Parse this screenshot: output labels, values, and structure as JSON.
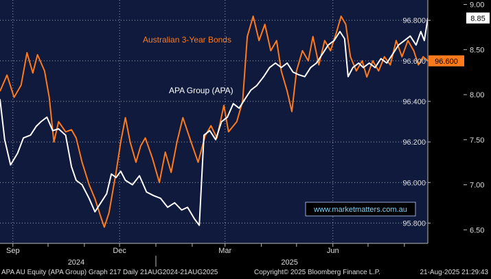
{
  "chart_data": {
    "type": "line",
    "x_range": [
      "2024-08-21",
      "2025-08-21"
    ],
    "x_tick_labels": [
      {
        "label": "Sep",
        "date": "2024-09-01"
      },
      {
        "label": "Dec",
        "date": "2024-12-01"
      },
      {
        "label": "Mar",
        "date": "2025-03-01"
      },
      {
        "label": "Jun",
        "date": "2025-06-01"
      }
    ],
    "year_labels": [
      {
        "label": "2024",
        "date": "2024-10-25"
      },
      {
        "label": "2025",
        "date": "2025-04-25"
      }
    ],
    "left_axis": {
      "series": "Australian 3-Year Bonds",
      "ylim": [
        95.7,
        96.9
      ],
      "ticks": [
        95.8,
        96.0,
        96.2,
        96.4,
        96.6,
        96.8
      ],
      "tick_labels": [
        "95.800",
        "96.000",
        "96.200",
        "96.400",
        "96.600",
        "96.800"
      ]
    },
    "right_axis": {
      "series": "APA Group (APA)",
      "ylim": [
        6.35,
        9.05
      ],
      "ticks": [
        6.5,
        7.0,
        7.5,
        8.0,
        8.5,
        9.0
      ],
      "tick_labels": [
        "6.50",
        "7.00",
        "7.50",
        "8.00",
        "8.50",
        "9.00"
      ]
    },
    "grid": true,
    "series": [
      {
        "name": "Australian 3-Year Bonds",
        "axis": "left",
        "color": "#ff7a1a",
        "last_value": "96.600",
        "points": [
          [
            "2024-08-21",
            96.45
          ],
          [
            "2024-08-27",
            96.53
          ],
          [
            "2024-09-02",
            96.42
          ],
          [
            "2024-09-08",
            96.48
          ],
          [
            "2024-09-13",
            96.64
          ],
          [
            "2024-09-18",
            96.54
          ],
          [
            "2024-09-22",
            96.63
          ],
          [
            "2024-09-28",
            96.55
          ],
          [
            "2024-10-02",
            96.42
          ],
          [
            "2024-10-06",
            96.2
          ],
          [
            "2024-10-10",
            96.3
          ],
          [
            "2024-10-16",
            96.25
          ],
          [
            "2024-10-21",
            96.26
          ],
          [
            "2024-10-25",
            96.22
          ],
          [
            "2024-10-30",
            96.1
          ],
          [
            "2024-11-05",
            95.99
          ],
          [
            "2024-11-10",
            95.92
          ],
          [
            "2024-11-15",
            95.83
          ],
          [
            "2024-11-18",
            95.78
          ],
          [
            "2024-11-22",
            95.85
          ],
          [
            "2024-11-28",
            96.05
          ],
          [
            "2024-12-02",
            96.2
          ],
          [
            "2024-12-06",
            96.32
          ],
          [
            "2024-12-10",
            96.2
          ],
          [
            "2024-12-15",
            96.1
          ],
          [
            "2024-12-19",
            96.18
          ],
          [
            "2024-12-23",
            96.22
          ],
          [
            "2024-12-29",
            96.12
          ],
          [
            "2025-01-04",
            96.0
          ],
          [
            "2025-01-09",
            96.15
          ],
          [
            "2025-01-14",
            96.05
          ],
          [
            "2025-01-19",
            96.2
          ],
          [
            "2025-01-24",
            96.32
          ],
          [
            "2025-01-31",
            96.2
          ],
          [
            "2025-02-06",
            96.1
          ],
          [
            "2025-02-12",
            96.23
          ],
          [
            "2025-02-17",
            96.28
          ],
          [
            "2025-02-22",
            96.22
          ],
          [
            "2025-02-28",
            96.38
          ],
          [
            "2025-03-04",
            96.25
          ],
          [
            "2025-03-11",
            96.3
          ],
          [
            "2025-03-16",
            96.4
          ],
          [
            "2025-03-20",
            96.72
          ],
          [
            "2025-03-25",
            96.82
          ],
          [
            "2025-03-30",
            96.7
          ],
          [
            "2025-04-04",
            96.78
          ],
          [
            "2025-04-09",
            96.65
          ],
          [
            "2025-04-14",
            96.7
          ],
          [
            "2025-04-18",
            96.55
          ],
          [
            "2025-04-23",
            96.45
          ],
          [
            "2025-04-27",
            96.35
          ],
          [
            "2025-05-01",
            96.55
          ],
          [
            "2025-05-06",
            96.65
          ],
          [
            "2025-05-11",
            96.6
          ],
          [
            "2025-05-15",
            96.72
          ],
          [
            "2025-05-20",
            96.58
          ],
          [
            "2025-05-25",
            96.7
          ],
          [
            "2025-05-30",
            96.65
          ],
          [
            "2025-06-04",
            96.74
          ],
          [
            "2025-06-08",
            96.82
          ],
          [
            "2025-06-12",
            96.78
          ],
          [
            "2025-06-16",
            96.62
          ],
          [
            "2025-06-21",
            96.55
          ],
          [
            "2025-06-26",
            96.6
          ],
          [
            "2025-06-30",
            96.52
          ],
          [
            "2025-07-05",
            96.6
          ],
          [
            "2025-07-10",
            96.55
          ],
          [
            "2025-07-15",
            96.62
          ],
          [
            "2025-07-20",
            96.58
          ],
          [
            "2025-07-25",
            96.7
          ],
          [
            "2025-07-30",
            96.62
          ],
          [
            "2025-08-04",
            96.7
          ],
          [
            "2025-08-09",
            96.65
          ],
          [
            "2025-08-13",
            96.58
          ],
          [
            "2025-08-17",
            96.62
          ],
          [
            "2025-08-21",
            96.6
          ]
        ]
      },
      {
        "name": "APA Group (APA)",
        "axis": "right",
        "color": "#ffffff",
        "last_value": "8.85",
        "points": [
          [
            "2024-08-21",
            7.95
          ],
          [
            "2024-08-25",
            7.5
          ],
          [
            "2024-08-30",
            7.22
          ],
          [
            "2024-09-05",
            7.35
          ],
          [
            "2024-09-10",
            7.52
          ],
          [
            "2024-09-16",
            7.55
          ],
          [
            "2024-09-21",
            7.65
          ],
          [
            "2024-09-25",
            7.7
          ],
          [
            "2024-09-30",
            7.75
          ],
          [
            "2024-10-05",
            7.6
          ],
          [
            "2024-10-10",
            7.62
          ],
          [
            "2024-10-16",
            7.55
          ],
          [
            "2024-10-21",
            7.2
          ],
          [
            "2024-10-25",
            7.05
          ],
          [
            "2024-10-30",
            7.0
          ],
          [
            "2024-11-05",
            6.85
          ],
          [
            "2024-11-10",
            6.7
          ],
          [
            "2024-11-15",
            6.8
          ],
          [
            "2024-11-20",
            6.9
          ],
          [
            "2024-11-24",
            7.12
          ],
          [
            "2024-11-28",
            7.08
          ],
          [
            "2024-12-02",
            7.15
          ],
          [
            "2024-12-06",
            7.05
          ],
          [
            "2024-12-12",
            7.0
          ],
          [
            "2024-12-18",
            7.1
          ],
          [
            "2024-12-24",
            6.92
          ],
          [
            "2024-12-30",
            6.88
          ],
          [
            "2025-01-05",
            6.85
          ],
          [
            "2025-01-11",
            6.75
          ],
          [
            "2025-01-17",
            6.8
          ],
          [
            "2025-01-23",
            6.72
          ],
          [
            "2025-01-28",
            6.75
          ],
          [
            "2025-02-03",
            6.62
          ],
          [
            "2025-02-07",
            6.55
          ],
          [
            "2025-02-11",
            7.55
          ],
          [
            "2025-02-16",
            7.6
          ],
          [
            "2025-02-21",
            7.5
          ],
          [
            "2025-02-26",
            7.7
          ],
          [
            "2025-03-03",
            7.75
          ],
          [
            "2025-03-08",
            7.9
          ],
          [
            "2025-03-13",
            7.85
          ],
          [
            "2025-03-18",
            7.95
          ],
          [
            "2025-03-23",
            8.05
          ],
          [
            "2025-03-28",
            8.1
          ],
          [
            "2025-04-03",
            8.2
          ],
          [
            "2025-04-08",
            8.3
          ],
          [
            "2025-04-13",
            8.35
          ],
          [
            "2025-04-18",
            8.3
          ],
          [
            "2025-04-23",
            8.35
          ],
          [
            "2025-04-28",
            8.25
          ],
          [
            "2025-05-03",
            8.22
          ],
          [
            "2025-05-08",
            8.2
          ],
          [
            "2025-05-13",
            8.3
          ],
          [
            "2025-05-18",
            8.35
          ],
          [
            "2025-05-23",
            8.45
          ],
          [
            "2025-05-28",
            8.55
          ],
          [
            "2025-06-02",
            8.6
          ],
          [
            "2025-06-07",
            8.7
          ],
          [
            "2025-06-11",
            8.62
          ],
          [
            "2025-06-14",
            8.2
          ],
          [
            "2025-06-18",
            8.3
          ],
          [
            "2025-06-23",
            8.35
          ],
          [
            "2025-06-27",
            8.3
          ],
          [
            "2025-07-02",
            8.35
          ],
          [
            "2025-07-07",
            8.3
          ],
          [
            "2025-07-12",
            8.4
          ],
          [
            "2025-07-17",
            8.35
          ],
          [
            "2025-07-22",
            8.45
          ],
          [
            "2025-07-27",
            8.55
          ],
          [
            "2025-08-01",
            8.6
          ],
          [
            "2025-08-06",
            8.65
          ],
          [
            "2025-08-11",
            8.55
          ],
          [
            "2025-08-15",
            8.7
          ],
          [
            "2025-08-18",
            8.6
          ],
          [
            "2025-08-21",
            8.85
          ]
        ]
      }
    ],
    "annotations": {
      "series_labels": [
        "Australian 3-Year Bonds",
        "APA Group (APA)"
      ],
      "watermark": "www.marketmatters.com.au"
    }
  },
  "footer": {
    "left": "APA AU Equity (APA Group) Graph 217  Daily 21AUG2024-21AUG2025",
    "center": "Copyright© 2025 Bloomberg Finance L.P.",
    "right": "21-Aug-2025 21:29:43"
  },
  "colors": {
    "background": "#0f1a3c",
    "grid": "#9aa3b8",
    "bonds": "#ff7a1a",
    "apa": "#ffffff",
    "axis_panel": "#000000"
  }
}
